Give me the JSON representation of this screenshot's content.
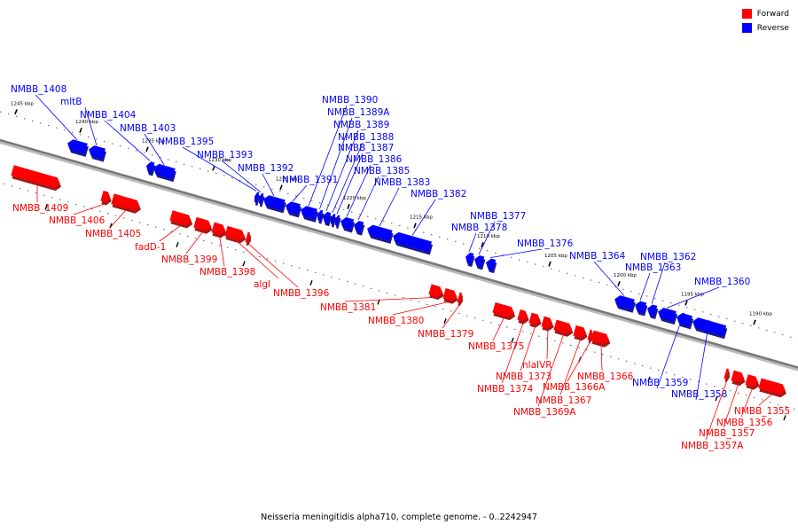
{
  "caption": "Neisseria meningitidis alpha710, complete genome. - 0..2242947",
  "legend": {
    "forward_label": "Forward",
    "reverse_label": "Reverse",
    "forward_color": "#ff0000",
    "reverse_color": "#0000ff"
  },
  "colors": {
    "forward": "#ff0000",
    "reverse": "#0000ff",
    "backbone": "#777777"
  },
  "ticks": [
    "1245 kbp",
    "1240 kbp",
    "1235 kbp",
    "1230 kbp",
    "1225 kbp",
    "1220 kbp",
    "1215 kbp",
    "1210 kbp",
    "1205 kbp",
    "1200 kbp",
    "1195 kbp",
    "1190 kbp"
  ],
  "genes": [
    {
      "name": "NMBB_1409",
      "strand": "forward"
    },
    {
      "name": "NMBB_1408",
      "strand": "reverse"
    },
    {
      "name": "mltB",
      "strand": "reverse"
    },
    {
      "name": "NMBB_1406",
      "strand": "forward"
    },
    {
      "name": "NMBB_1405",
      "strand": "forward"
    },
    {
      "name": "NMBB_1404",
      "strand": "reverse"
    },
    {
      "name": "NMBB_1403",
      "strand": "reverse"
    },
    {
      "name": "fadD-1",
      "strand": "forward"
    },
    {
      "name": "NMBB_1399",
      "strand": "forward"
    },
    {
      "name": "NMBB_1398",
      "strand": "forward"
    },
    {
      "name": "algI",
      "strand": "forward"
    },
    {
      "name": "NMBB_1396",
      "strand": "forward"
    },
    {
      "name": "NMBB_1395",
      "strand": "reverse"
    },
    {
      "name": "NMBB_1393",
      "strand": "reverse"
    },
    {
      "name": "NMBB_1392",
      "strand": "reverse"
    },
    {
      "name": "NMBB_1391",
      "strand": "reverse"
    },
    {
      "name": "NMBB_1390",
      "strand": "reverse"
    },
    {
      "name": "NMBB_1389A",
      "strand": "reverse"
    },
    {
      "name": "NMBB_1389",
      "strand": "reverse"
    },
    {
      "name": "NMBB_1388",
      "strand": "reverse"
    },
    {
      "name": "NMBB_1387",
      "strand": "reverse"
    },
    {
      "name": "NMBB_1386",
      "strand": "reverse"
    },
    {
      "name": "NMBB_1385",
      "strand": "reverse"
    },
    {
      "name": "NMBB_1383",
      "strand": "reverse"
    },
    {
      "name": "NMBB_1382",
      "strand": "reverse"
    },
    {
      "name": "NMBB_1381",
      "strand": "forward"
    },
    {
      "name": "NMBB_1380",
      "strand": "forward"
    },
    {
      "name": "NMBB_1379",
      "strand": "forward"
    },
    {
      "name": "NMBB_1378",
      "strand": "reverse"
    },
    {
      "name": "NMBB_1377",
      "strand": "reverse"
    },
    {
      "name": "NMBB_1376",
      "strand": "reverse"
    },
    {
      "name": "NMBB_1375",
      "strand": "forward"
    },
    {
      "name": "NMBB_1374",
      "strand": "forward"
    },
    {
      "name": "NMBB_1373",
      "strand": "forward"
    },
    {
      "name": "nlaIVR",
      "strand": "forward"
    },
    {
      "name": "NMBB_1369A",
      "strand": "forward"
    },
    {
      "name": "NMBB_1367",
      "strand": "forward"
    },
    {
      "name": "NMBB_1366A",
      "strand": "forward"
    },
    {
      "name": "NMBB_1366",
      "strand": "forward"
    },
    {
      "name": "NMBB_1364",
      "strand": "reverse"
    },
    {
      "name": "NMBB_1363",
      "strand": "reverse"
    },
    {
      "name": "NMBB_1362",
      "strand": "reverse"
    },
    {
      "name": "NMBB_1360",
      "strand": "reverse"
    },
    {
      "name": "NMBB_1359",
      "strand": "reverse"
    },
    {
      "name": "NMBB_1358",
      "strand": "reverse"
    },
    {
      "name": "NMBB_1357A",
      "strand": "forward"
    },
    {
      "name": "NMBB_1357",
      "strand": "forward"
    },
    {
      "name": "NMBB_1356",
      "strand": "forward"
    },
    {
      "name": "NMBB_1355",
      "strand": "forward"
    }
  ]
}
